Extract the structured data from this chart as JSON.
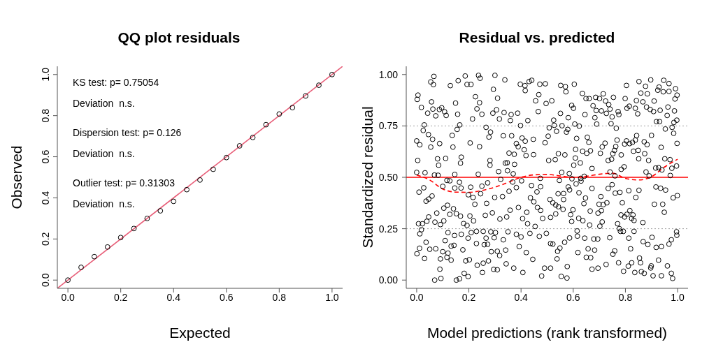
{
  "chart_data": [
    {
      "type": "scatter",
      "title": "QQ plot residuals",
      "xlabel": "Expected",
      "ylabel": "Observed",
      "xlim": [
        -0.04,
        1.04
      ],
      "ylim": [
        -0.04,
        1.04
      ],
      "xticks": [
        {
          "value": 0,
          "label": "0.0"
        },
        {
          "value": 0.2,
          "label": "0.2"
        },
        {
          "value": 0.4,
          "label": "0.4"
        },
        {
          "value": 0.6,
          "label": "0.6"
        },
        {
          "value": 0.8,
          "label": "0.8"
        },
        {
          "value": 1,
          "label": "1.0"
        }
      ],
      "yticks": [
        {
          "value": 0,
          "label": "0.0"
        },
        {
          "value": 0.2,
          "label": "0.2"
        },
        {
          "value": 0.4,
          "label": "0.4"
        },
        {
          "value": 0.6,
          "label": "0.6"
        },
        {
          "value": 0.8,
          "label": "0.8"
        },
        {
          "value": 1,
          "label": "1.0"
        }
      ],
      "annotations": [
        "KS test: p= 0.75054",
        "Deviation  n.s.",
        "Dispersion test: p= 0.126",
        "Deviation  n.s.",
        "Outlier test: p= 0.31303",
        "Deviation  n.s."
      ],
      "series": [
        {
          "marker": "circle",
          "color": "#000000",
          "x": [
            0,
            0.05,
            0.1,
            0.15,
            0.2,
            0.25,
            0.3,
            0.35,
            0.4,
            0.45,
            0.5,
            0.55,
            0.6,
            0.65,
            0.7,
            0.75,
            0.8,
            0.85,
            0.9,
            0.95,
            1.0
          ],
          "values": [
            0.0,
            0.062,
            0.114,
            0.161,
            0.207,
            0.251,
            0.3,
            0.337,
            0.383,
            0.44,
            0.487,
            0.539,
            0.596,
            0.653,
            0.694,
            0.756,
            0.808,
            0.839,
            0.896,
            0.948,
            1.0
          ]
        },
        {
          "type": "line",
          "color": "#e8607a",
          "line_style": "solid",
          "x": [
            -0.04,
            1.04
          ],
          "values": [
            -0.04,
            1.04
          ]
        }
      ]
    },
    {
      "type": "scatter",
      "title": "Residual vs. predicted",
      "xlabel": "Model predictions (rank transformed)",
      "ylabel": "Standardized residual",
      "xlim": [
        -0.04,
        1.04
      ],
      "ylim": [
        -0.04,
        1.04
      ],
      "xticks": [
        {
          "value": 0,
          "label": "0.0"
        },
        {
          "value": 0.2,
          "label": "0.2"
        },
        {
          "value": 0.4,
          "label": "0.4"
        },
        {
          "value": 0.6,
          "label": "0.6"
        },
        {
          "value": 0.8,
          "label": "0.8"
        },
        {
          "value": 1,
          "label": "1.0"
        }
      ],
      "yticks": [
        {
          "value": 0,
          "label": "0.00"
        },
        {
          "value": 0.25,
          "label": "0.25"
        },
        {
          "value": 0.5,
          "label": "0.50"
        },
        {
          "value": 0.75,
          "label": "0.75"
        },
        {
          "value": 1,
          "label": "1.00"
        }
      ],
      "ref_lines": [
        {
          "axis": "y",
          "value": 0.25,
          "color": "#a0a0a0",
          "line_style": "dotted"
        },
        {
          "axis": "y",
          "value": 0.5,
          "color": "#ff0000",
          "line_style": "solid"
        },
        {
          "axis": "y",
          "value": 0.75,
          "color": "#a0a0a0",
          "line_style": "dotted"
        }
      ],
      "series": [
        {
          "marker": "circle",
          "color": "#000000",
          "x": [
            0.066,
            0.054,
            0.064,
            0.129,
            0.159,
            0.186,
            0.193,
            0.208,
            0.237,
            0.243,
            0.3,
            0.294,
            0.338,
            0.397,
            0.415,
            0.441,
            0.431,
            0.472,
            0.493,
            0.416,
            0.005,
            0.002,
            0.057,
            0.018,
            0.042,
            0.062,
            0.087,
            0.096,
            0.107,
            0.113,
            0.073,
            0.149,
            0.157,
            0.225,
            0.241,
            0.231,
            0.25,
            0.214,
            0.31,
            0.292,
            0.306,
            0.335,
            0.362,
            0.387,
            0.317,
            0.359,
            0.456,
            0.468,
            0.466,
            0.496,
            0.426,
            0.029,
            0.025,
            0.045,
            0.061,
            0.0,
            0.012,
            0.054,
            0.088,
            0.136,
            0.155,
            0.165,
            0.139,
            0.205,
            0.241,
            0.266,
            0.283,
            0.277,
            0.332,
            0.364,
            0.398,
            0.404,
            0.416,
            0.447,
            0.382,
            0.389,
            0.412,
            0.419,
            0.448,
            0.354,
            0.374,
            0.492,
            0.004,
            0.08,
            0.084,
            0.111,
            0.171,
            0.168,
            0.281,
            0.281,
            0.34,
            0.347,
            0.375,
            0.0,
            0.032,
            0.068,
            0.082,
            0.146,
            0.236,
            0.314,
            0.348,
            0.37,
            0.322,
            0.116,
            0.127,
            0.164,
            0.272,
            0.25,
            0.1,
            0.146,
            0.17,
            0.207,
            0.009,
            0.027,
            0.368,
            0.382,
            0.354,
            0.402,
            0.44,
            0.461,
            0.475,
            0.474,
            0.198,
            0.245,
            0.216,
            0.223,
            0.268,
            0.299,
            0.329,
            0.036,
            0.046,
            0.059,
            0.104,
            0.118,
            0.077,
            0.127,
            0.141,
            0.152,
            0.046,
            0.007,
            0.022,
            0.039,
            0.07,
            0.091,
            0.104,
            0.012,
            0.018,
            0.168,
            0.204,
            0.218,
            0.18,
            0.193,
            0.263,
            0.29,
            0.319,
            0.345,
            0.358,
            0.39,
            0.406,
            0.422,
            0.425,
            0.454,
            0.436,
            0.449,
            0.463,
            0.475,
            0.483,
            0.12,
            0.145,
            0.109,
            0.171,
            0.197,
            0.209,
            0.229,
            0.255,
            0.266,
            0.297,
            0.284,
            0.302,
            0.332,
            0.35,
            0.382,
            0.4,
            0.434,
            0.47,
            0.497,
            0.036,
            0.011,
            0.001,
            0.05,
            0.03,
            0.073,
            0.1,
            0.12,
            0.132,
            0.143,
            0.116,
            0.132,
            0.091,
            0.177,
            0.188,
            0.202,
            0.229,
            0.259,
            0.272,
            0.232,
            0.255,
            0.275,
            0.286,
            0.309,
            0.318,
            0.295,
            0.309,
            0.341,
            0.343,
            0.372,
            0.393,
            0.42,
            0.445,
            0.407,
            0.089,
            0.069,
            0.093,
            0.152,
            0.164,
            0.182,
            0.197,
            0.252,
            0.479,
            0.49,
            0.513,
            0.552,
            0.57,
            0.604,
            0.572,
            0.518,
            0.635,
            0.649,
            0.661,
            0.686,
            0.701,
            0.715,
            0.724,
            0.736,
            0.754,
            0.676,
            0.688,
            0.708,
            0.727,
            0.741,
            0.772,
            0.775,
            0.804,
            0.799,
            0.806,
            0.815,
            0.852,
            0.877,
            0.897,
            0.947,
            0.967,
            0.929,
            0.924,
            0.945,
            0.967,
            0.992,
            0.998,
            0.99,
            0.859,
            0.884,
            0.91,
            0.842,
            0.867,
            0.838,
            0.847,
            0.881,
            0.895,
            0.908,
            0.933,
            0.963,
            0.96,
            0.988,
            0.551,
            0.594,
            0.601,
            0.581,
            0.525,
            0.527,
            0.557,
            0.606,
            0.623,
            0.645,
            0.683,
            0.69,
            0.745,
            0.765,
            0.749,
            0.919,
            0.931,
            0.997,
            0.986,
            0.979,
            0.953,
            0.985,
            0.9,
            0.508,
            0.536,
            0.574,
            0.579,
            0.504,
            0.613,
            0.654,
            0.66,
            0.609,
            0.636,
            0.652,
            0.666,
            0.704,
            0.711,
            0.722,
            0.752,
            0.758,
            0.763,
            0.768,
            0.784,
            0.797,
            0.804,
            0.816,
            0.827,
            0.831,
            0.843,
            0.838,
            0.849,
            0.872,
            0.883,
            0.874,
            0.937,
            0.998,
            0.506,
            0.531,
            0.543,
            0.568,
            0.608,
            0.627,
            0.602,
            0.672,
            0.734,
            0.747,
            0.784,
            0.795,
            0.851,
            0.889,
            0.916,
            0.927,
            0.951,
            0.971,
            0.996,
            0.978,
            0.94,
            0.972,
            0.879,
            0.891,
            0.741,
            0.76,
            0.556,
            0.585,
            0.595,
            0.629,
            0.642,
            0.547,
            0.63,
            0.581,
            0.586,
            0.611,
            0.622,
            0.672,
            0.734,
            0.749,
            0.761,
            0.779,
            0.813,
            0.852,
            0.84,
            0.917,
            0.935,
            0.954,
            0.983,
            0.999,
            0.511,
            0.542,
            0.563,
            0.563,
            0.522,
            0.533,
            0.543,
            0.561,
            0.599,
            0.641,
            0.647,
            0.665,
            0.695,
            0.699,
            0.708,
            0.706,
            0.715,
            0.729,
            0.788,
            0.783,
            0.797,
            0.806,
            0.817,
            0.829,
            0.824,
            0.833,
            0.867,
            0.911,
            0.943,
            0.949,
            0.513,
            0.533,
            0.59,
            0.594,
            0.621,
            0.637,
            0.663,
            0.702,
            0.711,
            0.77,
            0.777,
            0.781,
            0.792,
            0.833,
            0.615,
            0.616,
            0.586,
            0.644,
            0.679,
            0.694,
            0.74,
            0.813,
            0.868,
            0.902,
            0.886,
            0.918,
            0.938,
            0.967,
            0.976,
            0.996,
            0.997,
            0.522,
            0.549,
            0.567,
            0.54,
            0.538,
            0.513,
            0.577,
            0.618,
            0.657,
            0.682,
            0.65,
            0.667,
            0.672,
            0.695,
            0.726,
            0.752,
            0.759,
            0.774,
            0.793,
            0.811,
            0.824,
            0.82,
            0.836,
            0.854,
            0.858,
            0.861,
            0.872,
            0.899,
            0.897,
            0.906,
            0.927,
            0.938,
            0.961,
            0.976,
            0.981,
            0.554,
            0.576
          ],
          "values": [
            0.991,
            0.964,
            0.951,
            0.946,
            0.97,
            0.993,
            0.952,
            0.952,
            0.996,
            0.982,
            0.996,
            0.928,
            0.974,
            0.953,
            0.946,
            0.972,
            0.966,
            0.953,
            0.955,
            0.922,
            0.9,
            0.879,
            0.867,
            0.84,
            0.812,
            0.832,
            0.83,
            0.838,
            0.819,
            0.801,
            0.799,
            0.861,
            0.807,
            0.892,
            0.863,
            0.833,
            0.807,
            0.784,
            0.885,
            0.812,
            0.828,
            0.815,
            0.805,
            0.812,
            0.784,
            0.776,
            0.872,
            0.902,
            0.82,
            0.859,
            0.776,
            0.755,
            0.728,
            0.708,
            0.685,
            0.677,
            0.658,
            0.647,
            0.664,
            0.704,
            0.733,
            0.755,
            0.647,
            0.667,
            0.649,
            0.743,
            0.72,
            0.696,
            0.702,
            0.702,
            0.752,
            0.691,
            0.676,
            0.685,
            0.664,
            0.649,
            0.634,
            0.606,
            0.61,
            0.618,
            0.612,
            0.668,
            0.582,
            0.59,
            0.559,
            0.592,
            0.598,
            0.569,
            0.582,
            0.559,
            0.569,
            0.571,
            0.563,
            0.524,
            0.522,
            0.511,
            0.51,
            0.514,
            0.515,
            0.528,
            0.532,
            0.517,
            0.49,
            0.485,
            0.483,
            0.476,
            0.473,
            0.457,
            0.456,
            0.448,
            0.448,
            0.452,
            0.428,
            0.449,
            0.477,
            0.45,
            0.432,
            0.483,
            0.46,
            0.429,
            0.454,
            0.495,
            0.415,
            0.42,
            0.402,
            0.369,
            0.373,
            0.402,
            0.406,
            0.384,
            0.394,
            0.409,
            0.35,
            0.364,
            0.326,
            0.32,
            0.347,
            0.323,
            0.307,
            0.274,
            0.274,
            0.286,
            0.282,
            0.27,
            0.288,
            0.225,
            0.245,
            0.311,
            0.312,
            0.288,
            0.275,
            0.266,
            0.315,
            0.327,
            0.297,
            0.307,
            0.34,
            0.353,
            0.299,
            0.33,
            0.274,
            0.261,
            0.4,
            0.381,
            0.353,
            0.339,
            0.3,
            0.231,
            0.217,
            0.192,
            0.223,
            0.204,
            0.231,
            0.237,
            0.237,
            0.204,
            0.206,
            0.235,
            0.231,
            0.196,
            0.235,
            0.223,
            0.21,
            0.227,
            0.213,
            0.227,
            0.184,
            0.155,
            0.128,
            0.15,
            0.105,
            0.152,
            0.138,
            0.131,
            0.165,
            0.169,
            0.111,
            0.097,
            0.103,
            0.147,
            0.093,
            0.099,
            0.178,
            0.172,
            0.174,
            0.072,
            0.082,
            0.093,
            0.138,
            0.14,
            0.119,
            0.052,
            0.05,
            0.146,
            0.079,
            0.058,
            0.163,
            0.134,
            0.101,
            0.037,
            0.053,
            0.0,
            0.008,
            0.0,
            0.006,
            0.033,
            0.017,
            0.037,
            0.02,
            0.058,
            0.178,
            0.947,
            0.941,
            0.953,
            0.916,
            0.872,
            0.908,
            0.883,
            0.883,
            0.889,
            0.883,
            0.906,
            0.871,
            0.854,
            0.889,
            0.848,
            0.825,
            0.823,
            0.811,
            0.832,
            0.82,
            0.805,
            0.947,
            0.883,
            0.836,
            0.846,
            0.966,
            0.943,
            0.974,
            0.972,
            0.956,
            0.939,
            0.924,
            0.916,
            0.918,
            0.931,
            0.9,
            0.881,
            0.91,
            0.906,
            0.871,
            0.873,
            0.867,
            0.836,
            0.809,
            0.842,
            0.83,
            0.82,
            0.826,
            0.842,
            0.801,
            0.823,
            0.811,
            0.85,
            0.836,
            0.79,
            0.778,
            0.753,
            0.751,
            0.759,
            0.749,
            0.805,
            0.79,
            0.759,
            0.761,
            0.739,
            0.794,
            0.771,
            0.771,
            0.778,
            0.767,
            0.743,
            0.735,
            0.714,
            0.704,
            0.741,
            0.724,
            0.72,
            0.733,
            0.7,
            0.689,
            0.695,
            0.67,
            0.636,
            0.627,
            0.617,
            0.629,
            0.617,
            0.648,
            0.666,
            0.615,
            0.631,
            0.65,
            0.681,
            0.609,
            0.662,
            0.677,
            0.664,
            0.67,
            0.627,
            0.703,
            0.681,
            0.631,
            0.673,
            0.659,
            0.615,
            0.646,
            0.665,
            0.582,
            0.586,
            0.615,
            0.609,
            0.594,
            0.57,
            0.559,
            0.543,
            0.582,
            0.588,
            0.539,
            0.551,
            0.59,
            0.582,
            0.545,
            0.547,
            0.59,
            0.586,
            0.555,
            0.544,
            0.536,
            0.509,
            0.526,
            0.507,
            0.526,
            0.507,
            0.524,
            0.518,
            0.493,
            0.495,
            0.505,
            0.485,
            0.482,
            0.453,
            0.439,
            0.468,
            0.425,
            0.446,
            0.446,
            0.464,
            0.423,
            0.427,
            0.435,
            0.437,
            0.402,
            0.453,
            0.447,
            0.438,
            0.4,
            0.411,
            0.392,
            0.42,
            0.421,
            0.392,
            0.376,
            0.365,
            0.357,
            0.344,
            0.342,
            0.372,
            0.399,
            0.336,
            0.326,
            0.369,
            0.338,
            0.406,
            0.367,
            0.376,
            0.376,
            0.317,
            0.307,
            0.32,
            0.338,
            0.317,
            0.3,
            0.29,
            0.28,
            0.369,
            0.369,
            0.33,
            0.305,
            0.322,
            0.318,
            0.285,
            0.301,
            0.289,
            0.268,
            0.262,
            0.283,
            0.274,
            0.25,
            0.237,
            0.237,
            0.237,
            0.239,
            0.214,
            0.205,
            0.204,
            0.2,
            0.2,
            0.206,
            0.204,
            0.187,
            0.208,
            0.173,
            0.159,
            0.163,
            0.175,
            0.196,
            0.235,
            0.218,
            0.175,
            0.156,
            0.184,
            0.14,
            0.103,
            0.058,
            0.066,
            0.134,
            0.152,
            0.146,
            0.111,
            0.109,
            0.053,
            0.058,
            0.076,
            0.126,
            0.142,
            0.084,
            0.043,
            0.068,
            0.084,
            0.152,
            0.037,
            0.107,
            0.084,
            0.041,
            0.033,
            0.069,
            0.059,
            0.021,
            0.097,
            0.021,
            0.069,
            0.033,
            0.008,
            0.018,
            0.01
          ]
        },
        {
          "type": "line",
          "color": "#ff0000",
          "line_style": "dashed",
          "x": [
            0,
            0.05,
            0.1,
            0.15,
            0.2,
            0.25,
            0.3,
            0.35,
            0.4,
            0.45,
            0.5,
            0.55,
            0.6,
            0.65,
            0.7,
            0.75,
            0.8,
            0.85,
            0.9,
            0.95,
            1.0
          ],
          "values": [
            0.511,
            0.487,
            0.443,
            0.428,
            0.427,
            0.436,
            0.452,
            0.475,
            0.5,
            0.512,
            0.514,
            0.507,
            0.5,
            0.505,
            0.515,
            0.52,
            0.495,
            0.487,
            0.503,
            0.55,
            0.588
          ]
        }
      ]
    }
  ]
}
